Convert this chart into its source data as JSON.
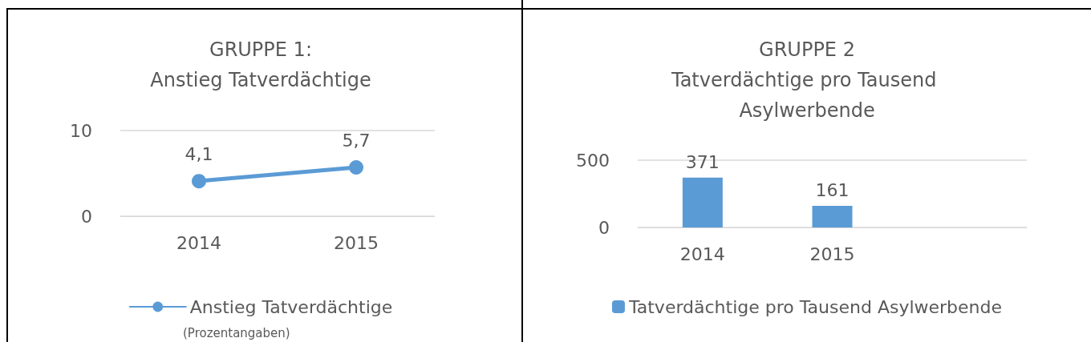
{
  "chart_data": [
    {
      "type": "line",
      "title": "GRUPPE 1:\nAnstieg Tatverdächtige",
      "categories": [
        "2014",
        "2015"
      ],
      "series": [
        {
          "name": "Anstieg Tatverdächtige",
          "color": "#5b9bd5",
          "values": [
            4.1,
            5.7
          ],
          "value_labels": [
            "4,1",
            "5,7"
          ]
        }
      ],
      "ylim": [
        0,
        10
      ],
      "yticks": [
        0,
        10
      ],
      "grid": "y",
      "legend": "bottom",
      "marker": "circle",
      "annotations": [
        "(Prozentangaben)"
      ]
    },
    {
      "type": "bar",
      "title": "GRUPPE 2\nTatverdächtige pro Tausend Asylwerbende",
      "categories": [
        "2014",
        "2015",
        null
      ],
      "series": [
        {
          "name": "Tatverdächtige pro Tausend Asylwerbende",
          "color": "#5b9bd5",
          "values": [
            371,
            161,
            null
          ]
        }
      ],
      "ylim": [
        0,
        500
      ],
      "yticks": [
        0,
        500
      ],
      "grid": "y",
      "legend": "bottom",
      "data_labels": true
    }
  ]
}
